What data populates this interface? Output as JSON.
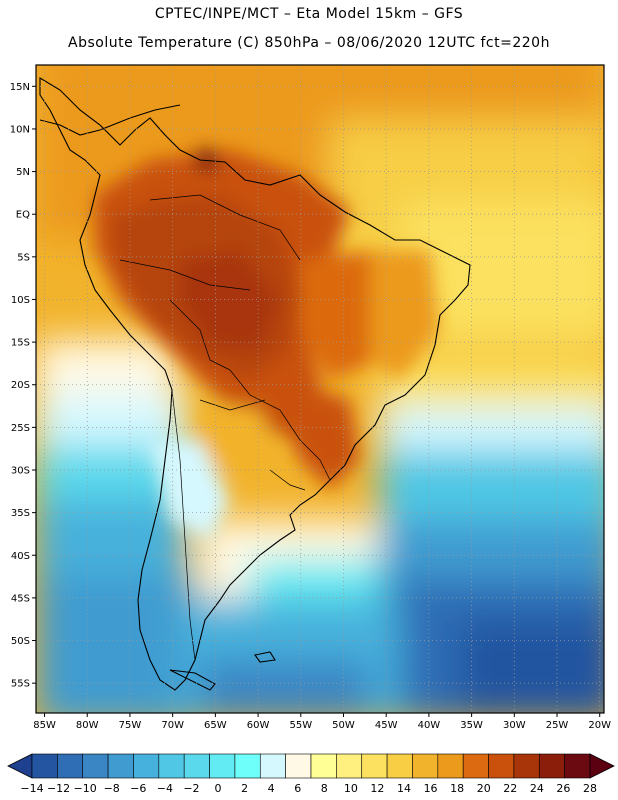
{
  "header": {
    "line1": "CPTEC/INPE/MCT –  Eta Model 15km – GFS",
    "line2": "Absolute Temperature (C) 850hPa – 08/06/2020 12UTC fct=220h"
  },
  "map": {
    "lat_labels": [
      "15N",
      "10N",
      "5N",
      "EQ",
      "5S",
      "10S",
      "15S",
      "20S",
      "25S",
      "30S",
      "35S",
      "40S",
      "45S",
      "50S",
      "55S"
    ],
    "lon_labels": [
      "85W",
      "80W",
      "75W",
      "70W",
      "65W",
      "60W",
      "55W",
      "50W",
      "45W",
      "40W",
      "35W",
      "30W",
      "25W",
      "20W"
    ],
    "region": "South America"
  },
  "colorbar": {
    "labels": [
      "-14",
      "-12",
      "-10",
      "-8",
      "-6",
      "-4",
      "-2",
      "0",
      "2",
      "4",
      "6",
      "8",
      "10",
      "12",
      "14",
      "16",
      "18",
      "20",
      "22",
      "24",
      "26",
      "28"
    ],
    "colors": [
      "#1f3f8f",
      "#2455a0",
      "#2f6db5",
      "#3a85c4",
      "#3f9bd0",
      "#46b1dc",
      "#4fc7e5",
      "#5bd9ec",
      "#62ebf2",
      "#6ffffa",
      "#d5f8ff",
      "#fff9e6",
      "#ffff96",
      "#fff080",
      "#fbe15f",
      "#f7ce44",
      "#f2b32c",
      "#ec9a1c",
      "#dc6a10",
      "#c9510c",
      "#a8350a",
      "#8a1e0a",
      "#6b0a10",
      "#5a0010"
    ]
  },
  "colors": {
    "warm_land": "#b54508",
    "hot_core": "#8a1e0a",
    "ocean_north": "#f2b32c",
    "ocean_south": "#46b1dc",
    "cold_deep": "#2455a0"
  }
}
